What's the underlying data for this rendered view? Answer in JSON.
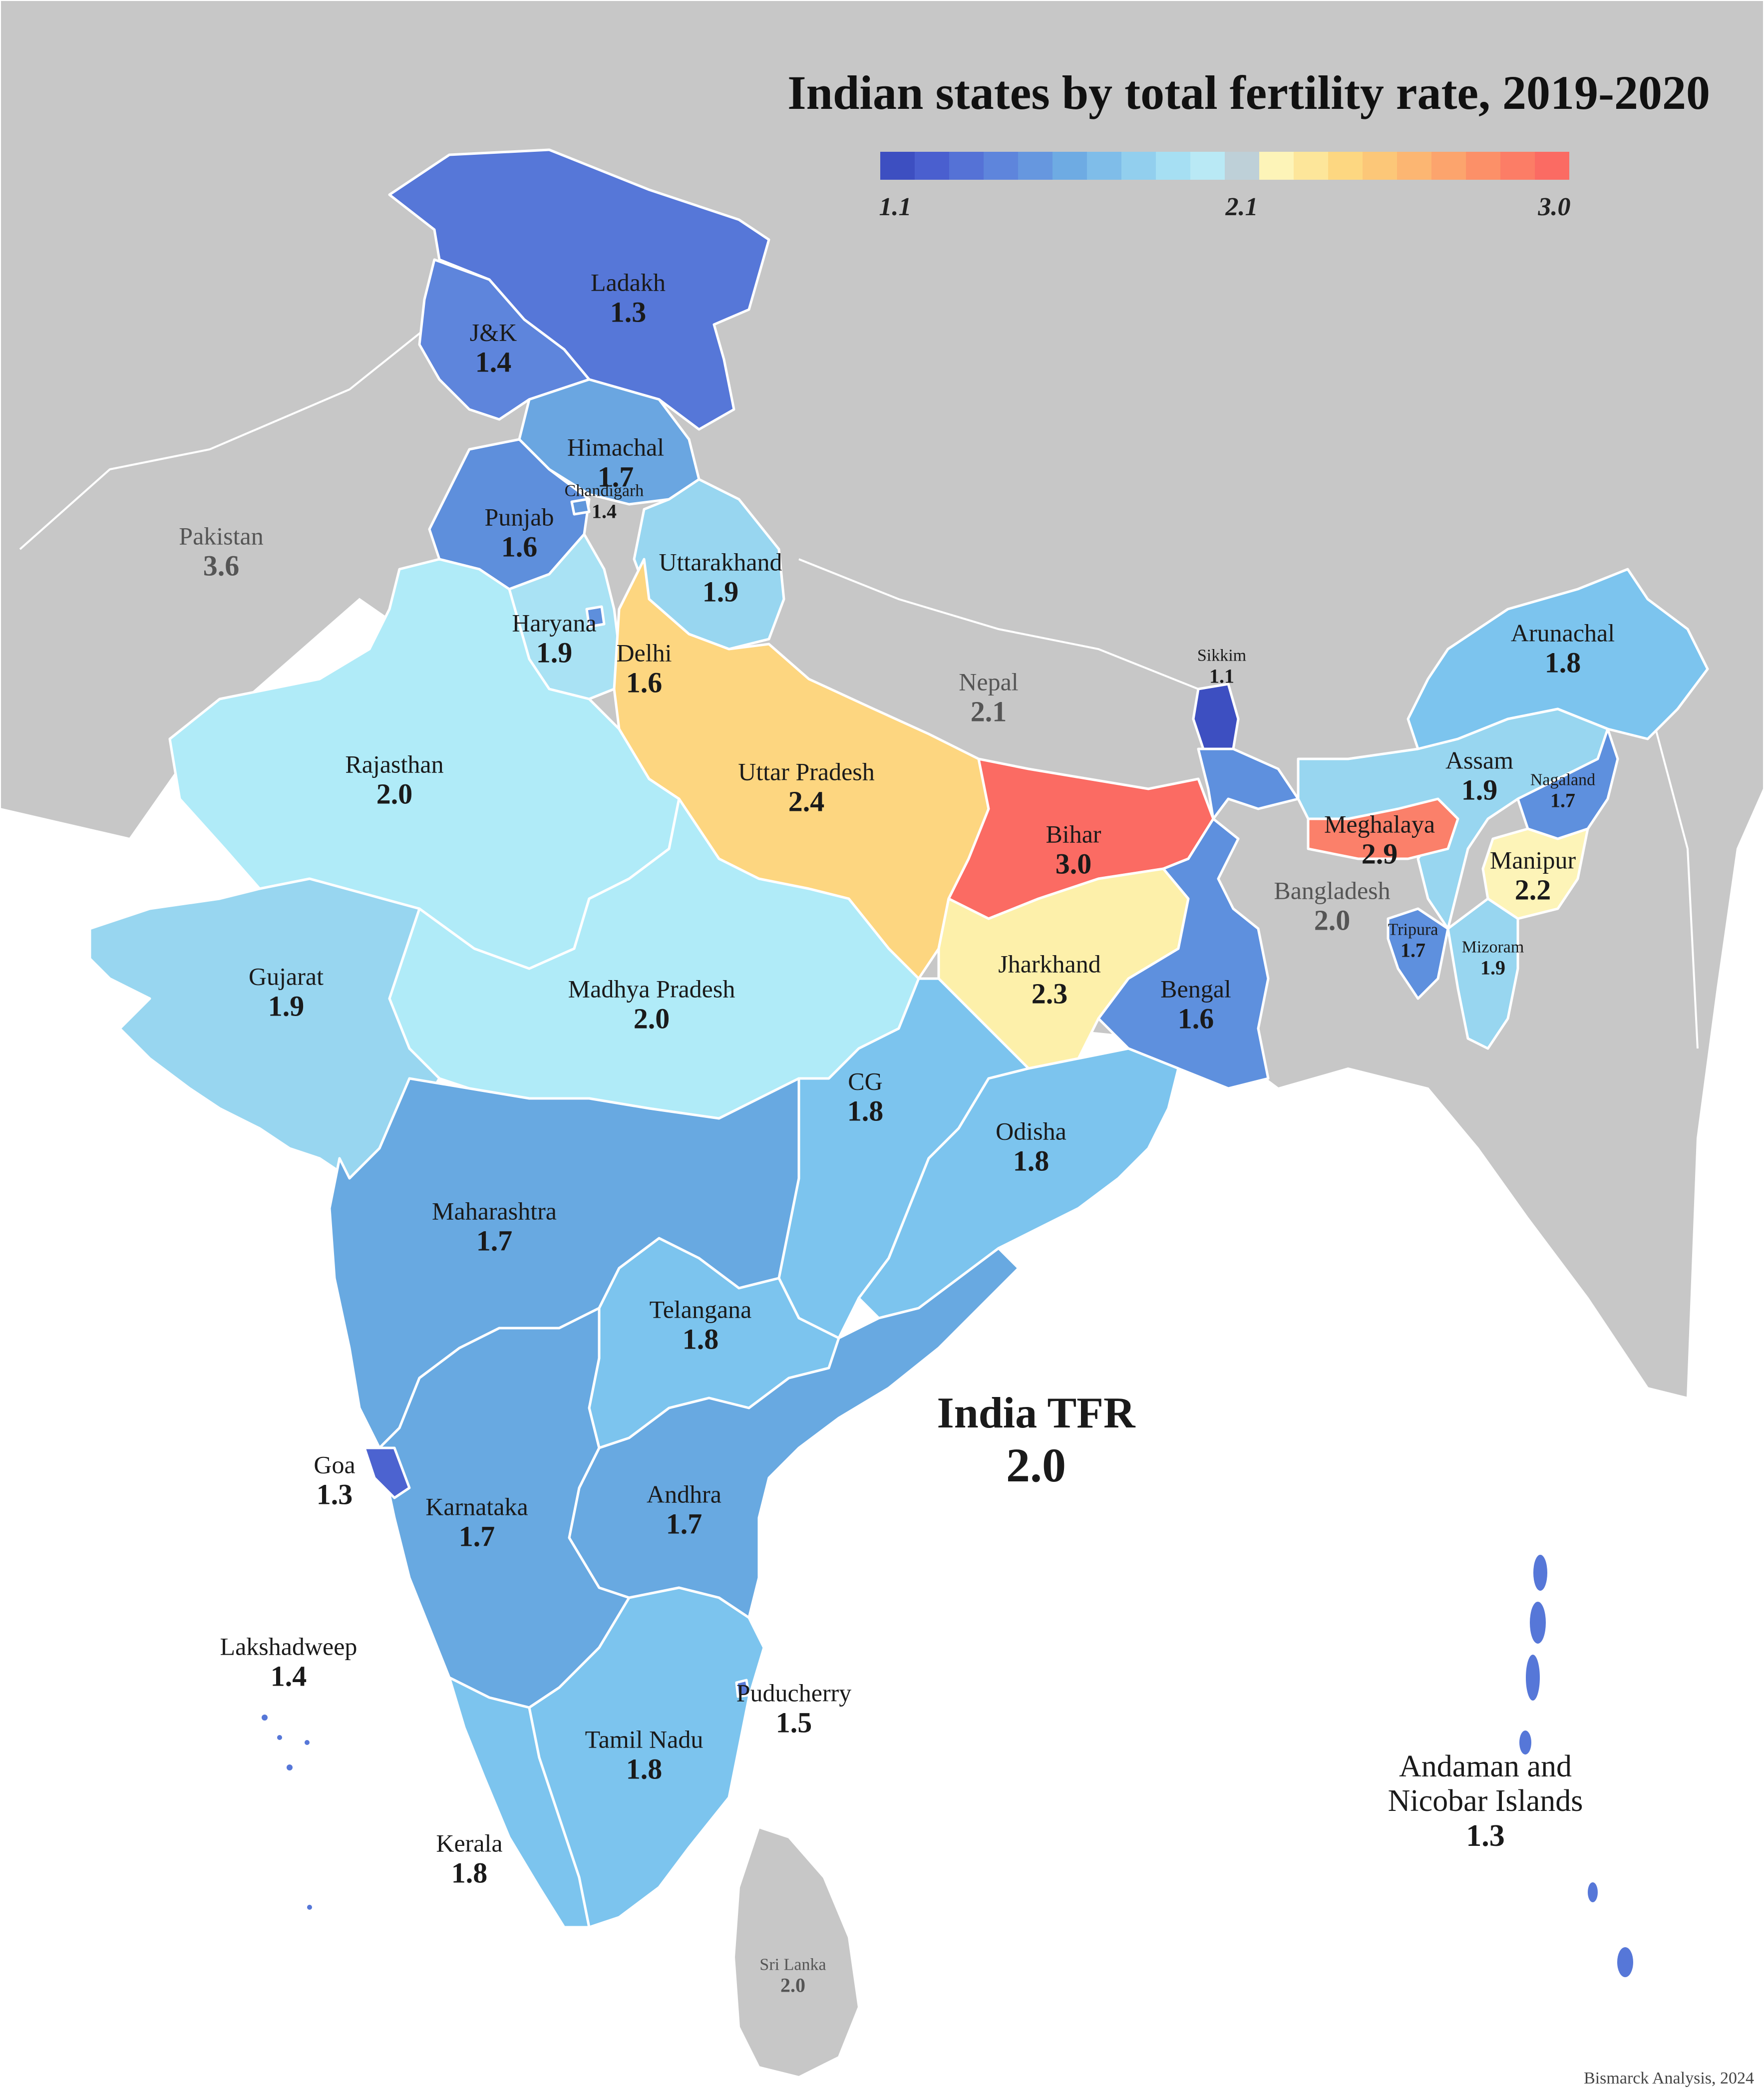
{
  "title": "Indian states by total fertility rate, 2019-2020",
  "legend": {
    "min_label": "1.1",
    "mid_label": "2.1",
    "max_label": "3.0",
    "colors": [
      "#3d4fc1",
      "#4a5fcf",
      "#5572d6",
      "#5e85dc",
      "#6697df",
      "#6eabe3",
      "#7fbde9",
      "#92cfee",
      "#a6dff3",
      "#b9e9f5",
      "#bed0d8",
      "#fdf4b8",
      "#fde69a",
      "#fdd781",
      "#fcc778",
      "#fcb672",
      "#fca46d",
      "#fc9068",
      "#fc7d66",
      "#fb6b63"
    ]
  },
  "colors": {
    "background": "#ffffff",
    "foreign_land": "#c7c7c7",
    "state_border": "#ffffff"
  },
  "states": [
    {
      "name": "Ladakh",
      "tfr": "1.3"
    },
    {
      "name": "J&K",
      "tfr": "1.4"
    },
    {
      "name": "Himachal",
      "tfr": "1.7"
    },
    {
      "name": "Chandigarh",
      "tfr": "1.4"
    },
    {
      "name": "Punjab",
      "tfr": "1.6"
    },
    {
      "name": "Uttarakhand",
      "tfr": "1.9"
    },
    {
      "name": "Haryana",
      "tfr": "1.9"
    },
    {
      "name": "Delhi",
      "tfr": "1.6"
    },
    {
      "name": "Rajasthan",
      "tfr": "2.0"
    },
    {
      "name": "Uttar Pradesh",
      "tfr": "2.4"
    },
    {
      "name": "Bihar",
      "tfr": "3.0"
    },
    {
      "name": "Sikkim",
      "tfr": "1.1"
    },
    {
      "name": "Arunachal",
      "tfr": "1.8"
    },
    {
      "name": "Assam",
      "tfr": "1.9"
    },
    {
      "name": "Nagaland",
      "tfr": "1.7"
    },
    {
      "name": "Meghalaya",
      "tfr": "2.9"
    },
    {
      "name": "Manipur",
      "tfr": "2.2"
    },
    {
      "name": "Tripura",
      "tfr": "1.7"
    },
    {
      "name": "Mizoram",
      "tfr": "1.9"
    },
    {
      "name": "Gujarat",
      "tfr": "1.9"
    },
    {
      "name": "Madhya Pradesh",
      "tfr": "2.0"
    },
    {
      "name": "Jharkhand",
      "tfr": "2.3"
    },
    {
      "name": "Bengal",
      "tfr": "1.6"
    },
    {
      "name": "CG",
      "tfr": "1.8"
    },
    {
      "name": "Odisha",
      "tfr": "1.8"
    },
    {
      "name": "Maharashtra",
      "tfr": "1.7"
    },
    {
      "name": "Telangana",
      "tfr": "1.8"
    },
    {
      "name": "Goa",
      "tfr": "1.3"
    },
    {
      "name": "Karnataka",
      "tfr": "1.7"
    },
    {
      "name": "Andhra",
      "tfr": "1.7"
    },
    {
      "name": "Lakshadweep",
      "tfr": "1.4"
    },
    {
      "name": "Puducherry",
      "tfr": "1.5"
    },
    {
      "name": "Tamil Nadu",
      "tfr": "1.8"
    },
    {
      "name": "Kerala",
      "tfr": "1.8"
    },
    {
      "name": "Andaman and Nicobar Islands",
      "tfr": "1.3"
    }
  ],
  "neighbors": [
    {
      "name": "Pakistan",
      "tfr": "3.6"
    },
    {
      "name": "Nepal",
      "tfr": "2.1"
    },
    {
      "name": "Bangladesh",
      "tfr": "2.0"
    },
    {
      "name": "Sri Lanka",
      "tfr": "2.0"
    }
  ],
  "india_total": {
    "label": "India TFR",
    "value": "2.0"
  },
  "credit": "Bismarck Analysis, 2024"
}
